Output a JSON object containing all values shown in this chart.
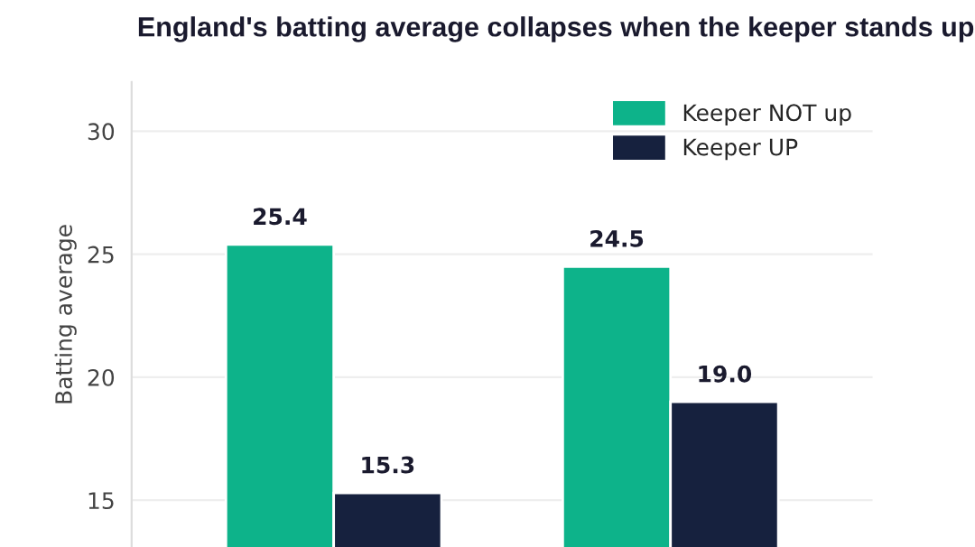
{
  "chart_data": {
    "type": "bar",
    "title": "England's batting average collapses when the keeper stands up",
    "ylabel": "Batting average",
    "categories": [
      null,
      null
    ],
    "series": [
      {
        "name": "Keeper NOT up",
        "color": "#0db38a",
        "values": [
          25.4,
          24.5
        ]
      },
      {
        "name": "Keeper UP",
        "color": "#16213e",
        "values": [
          15.3,
          19.0
        ]
      }
    ],
    "value_labels": [
      [
        "25.4",
        "24.5"
      ],
      [
        "15.3",
        "19.0"
      ]
    ],
    "ylim": [
      13.1,
      32
    ],
    "yticks": [
      15,
      20,
      25,
      30
    ],
    "grid": "y",
    "legend": "top right"
  }
}
